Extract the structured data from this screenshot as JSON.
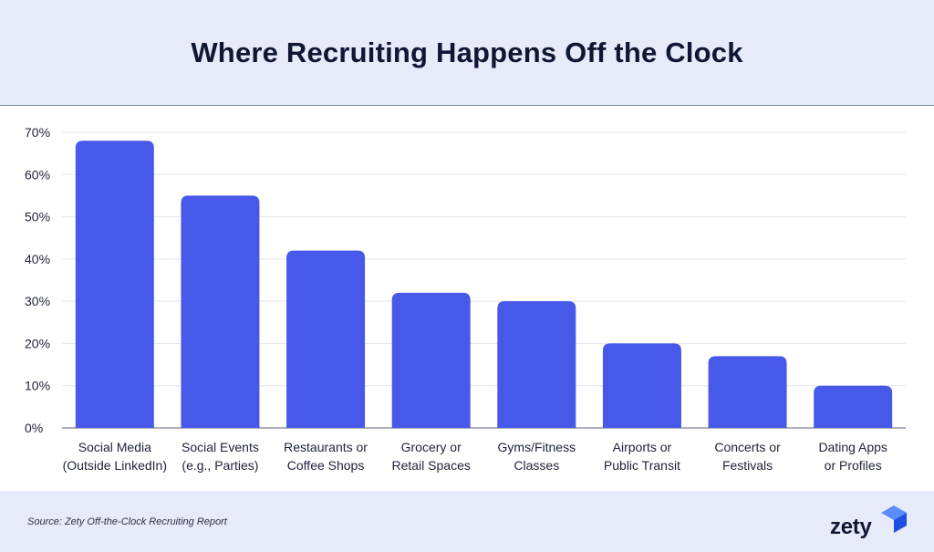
{
  "header": {
    "title": "Where Recruiting Happens Off the Clock"
  },
  "footer": {
    "source": "Source: Zety Off-the-Clock Recruiting Report",
    "logo_text": "zety"
  },
  "colors": {
    "bar": "#4759e8",
    "header_bg": "#e6eaf9",
    "title": "#0f1733",
    "logo_accent": "#2f6bff"
  },
  "chart_data": {
    "type": "bar",
    "title": "Where Recruiting Happens Off the Clock",
    "categories": [
      [
        "Social Media",
        "(Outside LinkedIn)"
      ],
      [
        "Social Events",
        "(e.g., Parties)"
      ],
      [
        "Restaurants or",
        "Coffee Shops"
      ],
      [
        "Grocery or",
        "Retail Spaces"
      ],
      [
        "Gyms/Fitness",
        "Classes"
      ],
      [
        "Airports or",
        "Public Transit"
      ],
      [
        "Concerts or",
        "Festivals"
      ],
      [
        "Dating Apps",
        "or Profiles"
      ]
    ],
    "values": [
      68,
      55,
      42,
      32,
      30,
      20,
      17,
      10
    ],
    "ylim": [
      0,
      70
    ],
    "yticks": [
      "0%",
      "10%",
      "20%",
      "30%",
      "40%",
      "50%",
      "60%",
      "70%"
    ],
    "xlabel": "",
    "ylabel": "",
    "grid": true,
    "legend": "none"
  }
}
